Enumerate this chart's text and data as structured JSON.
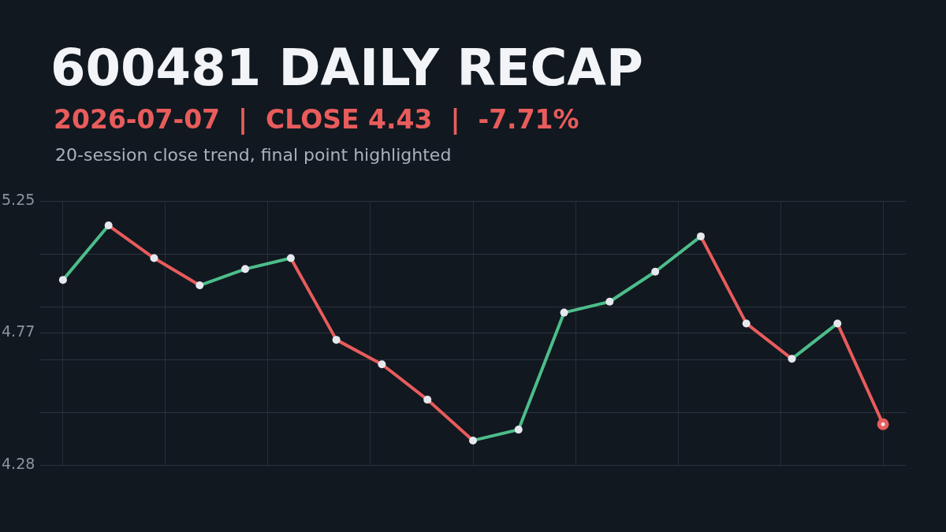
{
  "chart_data": {
    "type": "line",
    "title": "600481 DAILY RECAP",
    "subtitle": "2026-07-07  |  CLOSE 4.43  |  -7.71%",
    "annotations": [
      "20-session close trend, final point highlighted"
    ],
    "categories": [
      null,
      null,
      null,
      null,
      null,
      null,
      null,
      null,
      null,
      null,
      null,
      null,
      null,
      null,
      null,
      null,
      null,
      null,
      null
    ],
    "series": [
      {
        "color": "#4dbd8a",
        "marker": "none",
        "values": [
          4.96,
          5.16,
          null,
          null,
          null,
          null,
          null,
          null,
          null,
          null,
          null,
          null,
          null,
          null,
          null,
          null,
          null,
          null,
          null
        ]
      },
      {
        "color": "#e85c5c",
        "marker": "none",
        "values": [
          null,
          5.16,
          5.04,
          4.94,
          null,
          null,
          null,
          null,
          null,
          null,
          null,
          null,
          null,
          null,
          null,
          null,
          null,
          null,
          null
        ]
      },
      {
        "color": "#4dbd8a",
        "marker": "none",
        "values": [
          null,
          null,
          null,
          4.94,
          5.0,
          5.04,
          null,
          null,
          null,
          null,
          null,
          null,
          null,
          null,
          null,
          null,
          null,
          null,
          null
        ]
      },
      {
        "color": "#e85c5c",
        "marker": "none",
        "values": [
          null,
          null,
          null,
          null,
          null,
          5.04,
          4.74,
          4.65,
          4.52,
          4.37,
          null,
          null,
          null,
          null,
          null,
          null,
          null,
          null,
          null
        ]
      },
      {
        "color": "#4dbd8a",
        "marker": "none",
        "values": [
          null,
          null,
          null,
          null,
          null,
          null,
          null,
          null,
          null,
          4.37,
          4.41,
          4.84,
          4.88,
          4.99,
          5.12,
          null,
          null,
          null,
          null
        ]
      },
      {
        "color": "#e85c5c",
        "marker": "none",
        "values": [
          null,
          null,
          null,
          null,
          null,
          null,
          null,
          null,
          null,
          null,
          null,
          null,
          null,
          null,
          5.12,
          4.8,
          4.67,
          null,
          null
        ]
      },
      {
        "color": "#4dbd8a",
        "marker": "none",
        "values": [
          null,
          null,
          null,
          null,
          null,
          null,
          null,
          null,
          null,
          null,
          null,
          null,
          null,
          null,
          null,
          null,
          4.67,
          4.8,
          null
        ]
      },
      {
        "color": "#e85c5c",
        "marker": "none",
        "values": [
          null,
          null,
          null,
          null,
          null,
          null,
          null,
          null,
          null,
          null,
          null,
          null,
          null,
          null,
          null,
          null,
          null,
          4.8,
          4.43
        ]
      },
      {
        "type": "scatter",
        "marker": "circle",
        "color": "#e6e8ee",
        "colors": [
          "#e6e8ee",
          "#e6e8ee",
          "#e6e8ee",
          "#e6e8ee",
          "#e6e8ee",
          "#e6e8ee",
          "#e6e8ee",
          "#e6e8ee",
          "#e6e8ee",
          "#e6e8ee",
          "#e6e8ee",
          "#e6e8ee",
          "#e6e8ee",
          "#e6e8ee",
          "#e6e8ee",
          "#e6e8ee",
          "#e6e8ee",
          "#e6e8ee",
          "#e85c5c"
        ],
        "values": [
          4.96,
          5.16,
          5.04,
          4.94,
          5.0,
          5.04,
          4.74,
          4.65,
          4.52,
          4.37,
          4.41,
          4.84,
          4.88,
          4.99,
          5.12,
          4.8,
          4.67,
          4.8,
          4.43
        ]
      }
    ],
    "ylim": [
      4.28,
      5.25
    ],
    "yticks": [
      4.28,
      {
        "value": 4.474,
        "label": null
      },
      {
        "value": 4.668,
        "label": null
      },
      {
        "value": 4.765,
        "label": "4.77"
      },
      {
        "value": 4.862,
        "label": null
      },
      {
        "value": 5.056,
        "label": null
      },
      5.25
    ],
    "grid": true,
    "line_style": "solid",
    "legend": false
  }
}
